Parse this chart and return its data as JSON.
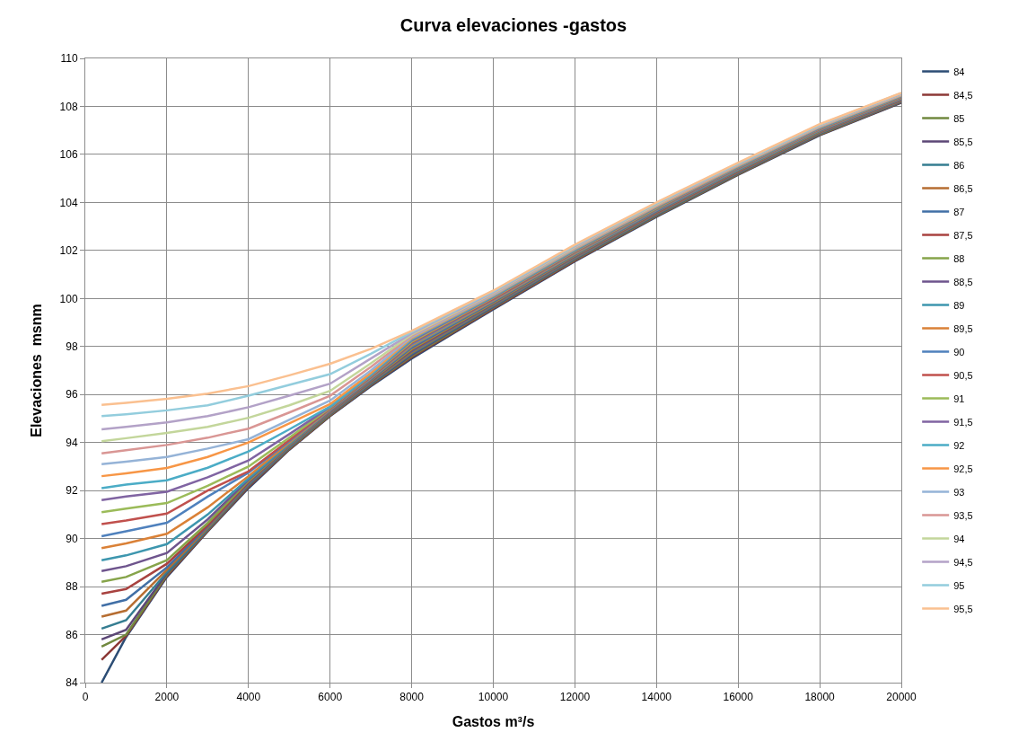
{
  "chart_data": {
    "type": "line",
    "title": "Curva elevaciones -gastos",
    "xlabel": "Gastos m³/s",
    "ylabel": "Elevaciones  msnm",
    "x": [
      400,
      1000,
      2000,
      3000,
      4000,
      5000,
      6000,
      7000,
      8000,
      10000,
      12000,
      14000,
      16000,
      18000,
      20000
    ],
    "xlim": [
      0,
      20000
    ],
    "xticks": [
      0,
      2000,
      4000,
      6000,
      8000,
      10000,
      12000,
      14000,
      16000,
      18000,
      20000
    ],
    "ylim": [
      84,
      110
    ],
    "yticks": [
      84,
      86,
      88,
      90,
      92,
      94,
      96,
      98,
      100,
      102,
      104,
      106,
      108,
      110
    ],
    "grid": true,
    "legend": "right",
    "series": [
      {
        "name": "84",
        "color": "#2c4d75",
        "values": [
          84.0,
          85.9,
          88.4,
          90.3,
          92.1,
          93.7,
          95.1,
          96.35,
          97.5,
          99.55,
          101.55,
          103.4,
          105.15,
          106.8,
          108.15
        ]
      },
      {
        "name": "84,5",
        "color": "#8c3836",
        "values": [
          84.95,
          85.95,
          88.45,
          90.32,
          92.15,
          93.72,
          95.12,
          96.38,
          97.55,
          99.58,
          101.58,
          103.43,
          105.17,
          106.82,
          108.17
        ]
      },
      {
        "name": "85",
        "color": "#71893f",
        "values": [
          85.5,
          86.0,
          88.5,
          90.35,
          92.2,
          93.75,
          95.15,
          96.41,
          97.6,
          99.62,
          101.61,
          103.45,
          105.19,
          106.84,
          108.19
        ]
      },
      {
        "name": "85,5",
        "color": "#5c4776",
        "values": [
          85.8,
          86.2,
          88.55,
          90.38,
          92.22,
          93.78,
          95.18,
          96.44,
          97.65,
          99.65,
          101.64,
          103.48,
          105.22,
          106.86,
          108.2
        ]
      },
      {
        "name": "86",
        "color": "#357d91",
        "values": [
          86.25,
          86.6,
          88.6,
          90.4,
          92.25,
          93.8,
          95.2,
          96.47,
          97.7,
          99.69,
          101.67,
          103.5,
          105.24,
          106.88,
          108.22
        ]
      },
      {
        "name": "86,5",
        "color": "#b66d31",
        "values": [
          86.75,
          87.0,
          88.7,
          90.45,
          92.28,
          93.83,
          95.22,
          96.5,
          97.75,
          99.72,
          101.7,
          103.53,
          105.26,
          106.9,
          108.24
        ]
      },
      {
        "name": "87",
        "color": "#416fa6",
        "values": [
          87.2,
          87.45,
          88.8,
          90.5,
          92.3,
          93.85,
          95.25,
          96.53,
          97.8,
          99.75,
          101.73,
          103.56,
          105.28,
          106.92,
          108.26
        ]
      },
      {
        "name": "87,5",
        "color": "#a8423f",
        "values": [
          87.7,
          87.9,
          88.95,
          90.55,
          92.35,
          93.88,
          95.28,
          96.56,
          97.85,
          99.79,
          101.76,
          103.58,
          105.3,
          106.94,
          108.28
        ]
      },
      {
        "name": "88",
        "color": "#86a44a",
        "values": [
          88.2,
          88.4,
          89.1,
          90.65,
          92.4,
          93.9,
          95.3,
          96.59,
          97.9,
          99.82,
          101.79,
          103.61,
          105.33,
          106.96,
          108.3
        ]
      },
      {
        "name": "88,5",
        "color": "#6e548d",
        "values": [
          88.65,
          88.85,
          89.4,
          90.8,
          92.45,
          93.93,
          95.32,
          96.62,
          97.95,
          99.86,
          101.82,
          103.63,
          105.35,
          106.98,
          108.31
        ]
      },
      {
        "name": "89",
        "color": "#3d96ae",
        "values": [
          89.1,
          89.3,
          89.77,
          91.0,
          92.5,
          93.95,
          95.35,
          96.65,
          98.0,
          99.89,
          101.85,
          103.66,
          105.37,
          107.0,
          108.33
        ]
      },
      {
        "name": "89,5",
        "color": "#da8137",
        "values": [
          89.6,
          89.8,
          90.2,
          91.3,
          92.6,
          94.0,
          95.37,
          96.68,
          98.05,
          99.92,
          101.88,
          103.69,
          105.39,
          107.02,
          108.35
        ]
      },
      {
        "name": "90",
        "color": "#4f81bd",
        "values": [
          90.1,
          90.3,
          90.66,
          91.75,
          92.75,
          94.05,
          95.4,
          96.71,
          98.1,
          99.96,
          101.91,
          103.71,
          105.41,
          107.04,
          108.37
        ]
      },
      {
        "name": "90,5",
        "color": "#c0504d",
        "values": [
          90.6,
          90.75,
          91.04,
          92.0,
          92.8,
          94.1,
          95.42,
          96.74,
          98.15,
          99.99,
          101.94,
          103.74,
          105.44,
          107.06,
          108.39
        ]
      },
      {
        "name": "91",
        "color": "#9bbb59",
        "values": [
          91.1,
          91.25,
          91.48,
          92.2,
          93.0,
          94.2,
          95.45,
          96.77,
          98.2,
          100.03,
          101.97,
          103.76,
          105.46,
          107.08,
          108.4
        ]
      },
      {
        "name": "91,5",
        "color": "#8064a2",
        "values": [
          91.6,
          91.75,
          91.95,
          92.55,
          93.25,
          94.35,
          95.48,
          96.8,
          98.25,
          100.06,
          102.0,
          103.79,
          105.48,
          107.1,
          108.42
        ]
      },
      {
        "name": "92",
        "color": "#4bacc6",
        "values": [
          92.1,
          92.25,
          92.43,
          92.95,
          93.63,
          94.55,
          95.5,
          96.83,
          98.3,
          100.09,
          102.03,
          103.82,
          105.5,
          107.12,
          108.44
        ]
      },
      {
        "name": "92,5",
        "color": "#f79646",
        "values": [
          92.6,
          92.72,
          92.94,
          93.4,
          94.0,
          94.8,
          95.6,
          96.9,
          98.35,
          100.13,
          102.06,
          103.84,
          105.52,
          107.14,
          108.46
        ]
      },
      {
        "name": "93",
        "color": "#95b3d7",
        "values": [
          93.1,
          93.2,
          93.4,
          93.75,
          94.14,
          94.95,
          95.75,
          97.0,
          98.4,
          100.16,
          102.09,
          103.87,
          105.55,
          107.16,
          108.48
        ]
      },
      {
        "name": "93,5",
        "color": "#d99694",
        "values": [
          93.55,
          93.68,
          93.9,
          94.2,
          94.58,
          95.25,
          95.95,
          97.15,
          98.45,
          100.2,
          102.12,
          103.89,
          105.57,
          107.18,
          108.49
        ]
      },
      {
        "name": "94",
        "color": "#c3d69b",
        "values": [
          94.05,
          94.18,
          94.4,
          94.65,
          95.03,
          95.55,
          96.15,
          97.3,
          98.5,
          100.23,
          102.15,
          103.92,
          105.59,
          107.2,
          108.51
        ]
      },
      {
        "name": "94,5",
        "color": "#b3a2c7",
        "values": [
          94.55,
          94.65,
          94.84,
          95.1,
          95.47,
          95.95,
          96.45,
          97.5,
          98.55,
          100.26,
          102.18,
          103.95,
          105.61,
          107.22,
          108.53
        ]
      },
      {
        "name": "95",
        "color": "#93cddd",
        "values": [
          95.1,
          95.18,
          95.34,
          95.55,
          95.95,
          96.4,
          96.85,
          97.7,
          98.6,
          100.3,
          102.21,
          103.97,
          105.63,
          107.24,
          108.55
        ]
      },
      {
        "name": "95,5",
        "color": "#fac090",
        "values": [
          95.57,
          95.65,
          95.82,
          96.04,
          96.35,
          96.8,
          97.28,
          97.9,
          98.65,
          100.33,
          102.24,
          104.0,
          105.66,
          107.26,
          108.56
        ]
      }
    ]
  }
}
